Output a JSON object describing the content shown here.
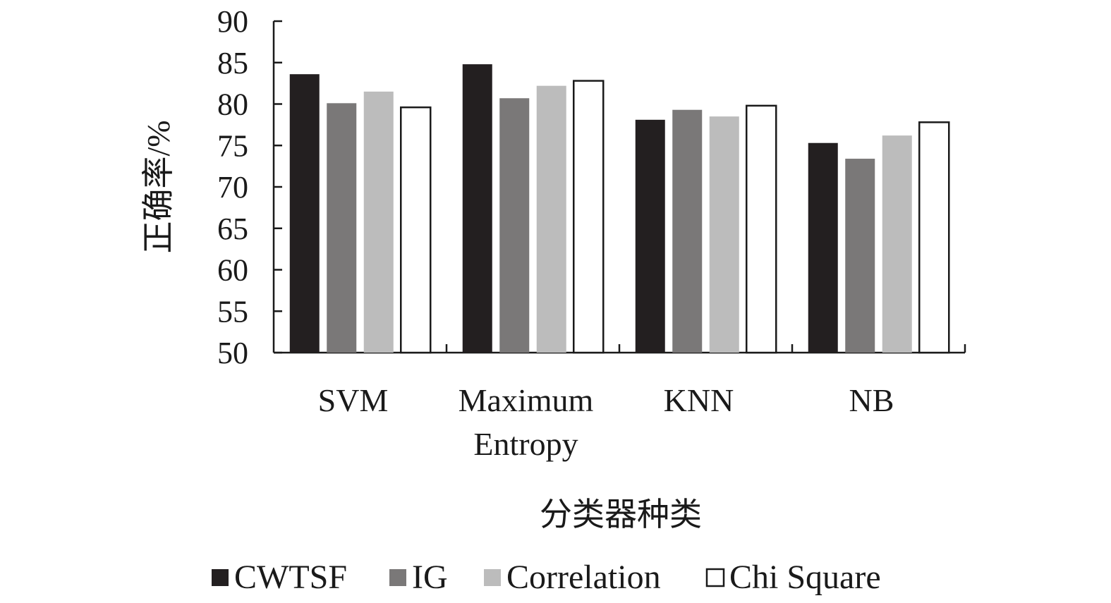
{
  "chart_data": {
    "type": "bar",
    "title": "",
    "xlabel": "分类器种类",
    "ylabel": "正确率/%",
    "ylim": [
      50,
      90
    ],
    "yticks": [
      50,
      55,
      60,
      65,
      70,
      75,
      80,
      85,
      90
    ],
    "categories": [
      [
        "SVM"
      ],
      [
        "Maximum",
        "Entropy"
      ],
      [
        "KNN"
      ],
      [
        "NB"
      ]
    ],
    "series": [
      {
        "name": "CWTSF",
        "color": "#231f20",
        "values": [
          83.6,
          84.8,
          78.1,
          75.3
        ]
      },
      {
        "name": "IG",
        "color": "#7a7878",
        "values": [
          80.1,
          80.7,
          79.3,
          73.4
        ]
      },
      {
        "name": "Correlation",
        "color": "#bcbcbc",
        "values": [
          81.5,
          82.2,
          78.5,
          76.2
        ]
      },
      {
        "name": "Chi Square",
        "color": "#ffffff",
        "values": [
          79.6,
          82.8,
          79.8,
          77.8
        ]
      }
    ],
    "grid": false,
    "legend_position": "bottom"
  }
}
